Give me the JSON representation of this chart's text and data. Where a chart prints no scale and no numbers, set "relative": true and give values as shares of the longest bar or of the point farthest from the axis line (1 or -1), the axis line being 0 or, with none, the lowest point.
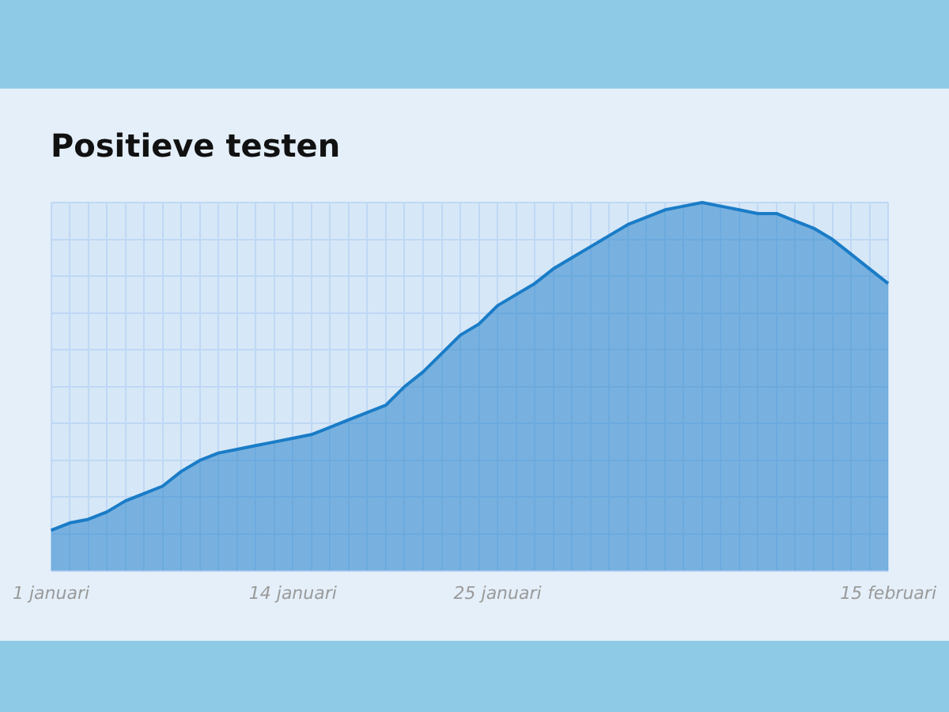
{
  "chart_data": {
    "type": "area",
    "title": "Positieve testen",
    "relative": true,
    "grid": true,
    "categories": [
      "1 januari",
      null,
      null,
      null,
      null,
      null,
      null,
      null,
      null,
      null,
      null,
      null,
      null,
      "14 januari",
      null,
      null,
      null,
      null,
      null,
      null,
      null,
      null,
      null,
      null,
      "25 januari",
      null,
      null,
      null,
      null,
      null,
      null,
      null,
      null,
      null,
      null,
      null,
      null,
      null,
      null,
      null,
      null,
      null,
      null,
      null,
      null,
      "15 februari"
    ],
    "series": [
      {
        "color": "#1a7cc7",
        "values": [
          0.11,
          0.13,
          0.14,
          0.16,
          0.19,
          0.21,
          0.23,
          0.27,
          0.3,
          0.32,
          0.33,
          0.34,
          0.35,
          0.36,
          0.37,
          0.39,
          0.41,
          0.43,
          0.45,
          0.5,
          0.54,
          0.59,
          0.64,
          0.67,
          0.72,
          0.75,
          0.78,
          0.82,
          0.85,
          0.88,
          0.91,
          0.94,
          0.96,
          0.98,
          0.99,
          1,
          0.99,
          0.98,
          0.97,
          0.97,
          0.95,
          0.93,
          0.9,
          0.86,
          0.82,
          0.78
        ]
      }
    ]
  }
}
